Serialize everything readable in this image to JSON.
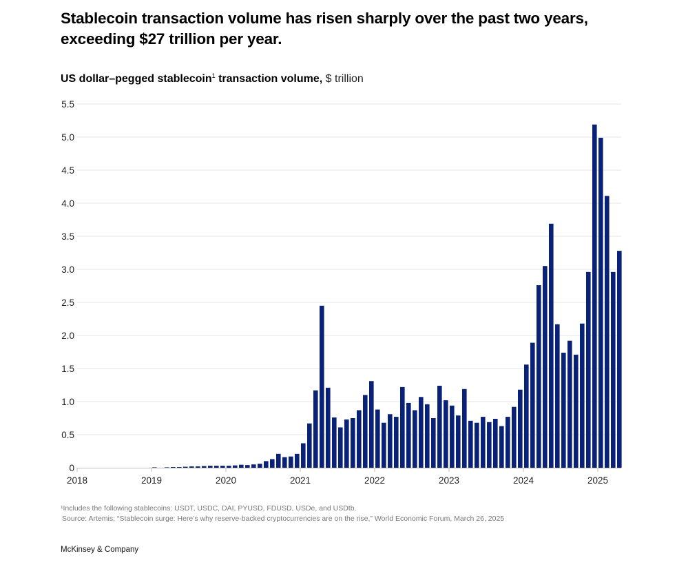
{
  "header": {
    "title": "Stablecoin transaction volume has risen sharply over the past two years, exceeding $27 trillion per year.",
    "subtitle_bold": "US dollar–pegged stablecoin",
    "subtitle_footnote_marker": "1",
    "subtitle_bold_tail": " transaction volume,",
    "subtitle_unit": " $ trillion"
  },
  "footer": {
    "footnote": "¹Includes the following stablecoins: USDT, USDC, DAI, PYUSD, FDUSD, USDe, and USDtb.",
    "source": "Source: Artemis; “Stablecoin surge: Here’s why reserve-backed cryptocurrencies are on the rise,” World Economic Forum, March 26, 2025",
    "brand": "McKinsey & Company"
  },
  "colors": {
    "bar": "#0a2178",
    "gridline": "#e6e6e6",
    "axis": "#bdbdbd"
  },
  "chart_data": {
    "type": "bar",
    "title": "US dollar–pegged stablecoin transaction volume, $ trillion",
    "xlabel": "",
    "ylabel": "$ trillion",
    "ylim": [
      0,
      5.5
    ],
    "grid": true,
    "legend": "none",
    "frequency": "monthly",
    "start": "2018-01",
    "end": "2025-04",
    "yticks": [
      "0",
      "0.5",
      "1.0",
      "1.5",
      "2.0",
      "2.5",
      "3.0",
      "3.5",
      "4.0",
      "4.5",
      "5.0",
      "5.5"
    ],
    "xticks": [
      "2018",
      "2019",
      "2020",
      "2021",
      "2022",
      "2023",
      "2024",
      "2025"
    ],
    "categories": [
      "2018-01",
      "2018-02",
      "2018-03",
      "2018-04",
      "2018-05",
      "2018-06",
      "2018-07",
      "2018-08",
      "2018-09",
      "2018-10",
      "2018-11",
      "2018-12",
      "2019-01",
      "2019-02",
      "2019-03",
      "2019-04",
      "2019-05",
      "2019-06",
      "2019-07",
      "2019-08",
      "2019-09",
      "2019-10",
      "2019-11",
      "2019-12",
      "2020-01",
      "2020-02",
      "2020-03",
      "2020-04",
      "2020-05",
      "2020-06",
      "2020-07",
      "2020-08",
      "2020-09",
      "2020-10",
      "2020-11",
      "2020-12",
      "2021-01",
      "2021-02",
      "2021-03",
      "2021-04",
      "2021-05",
      "2021-06",
      "2021-07",
      "2021-08",
      "2021-09",
      "2021-10",
      "2021-11",
      "2021-12",
      "2022-01",
      "2022-02",
      "2022-03",
      "2022-04",
      "2022-05",
      "2022-06",
      "2022-07",
      "2022-08",
      "2022-09",
      "2022-10",
      "2022-11",
      "2022-12",
      "2023-01",
      "2023-02",
      "2023-03",
      "2023-04",
      "2023-05",
      "2023-06",
      "2023-07",
      "2023-08",
      "2023-09",
      "2023-10",
      "2023-11",
      "2023-12",
      "2024-01",
      "2024-02",
      "2024-03",
      "2024-04",
      "2024-05",
      "2024-06",
      "2024-07",
      "2024-08",
      "2024-09",
      "2024-10",
      "2024-11",
      "2024-12",
      "2025-01",
      "2025-02",
      "2025-03",
      "2025-04"
    ],
    "values": [
      0,
      0,
      0,
      0,
      0,
      0,
      0,
      0,
      0,
      0,
      0,
      0,
      0.005,
      0,
      0.005,
      0.01,
      0.01,
      0.015,
      0.02,
      0.02,
      0.025,
      0.03,
      0.03,
      0.03,
      0.03,
      0.035,
      0.045,
      0.04,
      0.05,
      0.06,
      0.1,
      0.13,
      0.21,
      0.16,
      0.17,
      0.21,
      0.37,
      0.67,
      1.17,
      2.45,
      1.21,
      0.76,
      0.61,
      0.73,
      0.75,
      0.87,
      1.1,
      1.31,
      0.88,
      0.68,
      0.81,
      0.77,
      1.22,
      0.98,
      0.87,
      1.07,
      0.96,
      0.75,
      1.24,
      1.02,
      0.94,
      0.79,
      1.19,
      0.71,
      0.68,
      0.77,
      0.69,
      0.74,
      0.63,
      0.77,
      0.92,
      1.18,
      1.56,
      1.89,
      2.76,
      3.05,
      3.69,
      2.17,
      1.74,
      1.92,
      1.71,
      2.18,
      2.96,
      5.19,
      4.99,
      4.11,
      2.96,
      3.28
    ]
  }
}
